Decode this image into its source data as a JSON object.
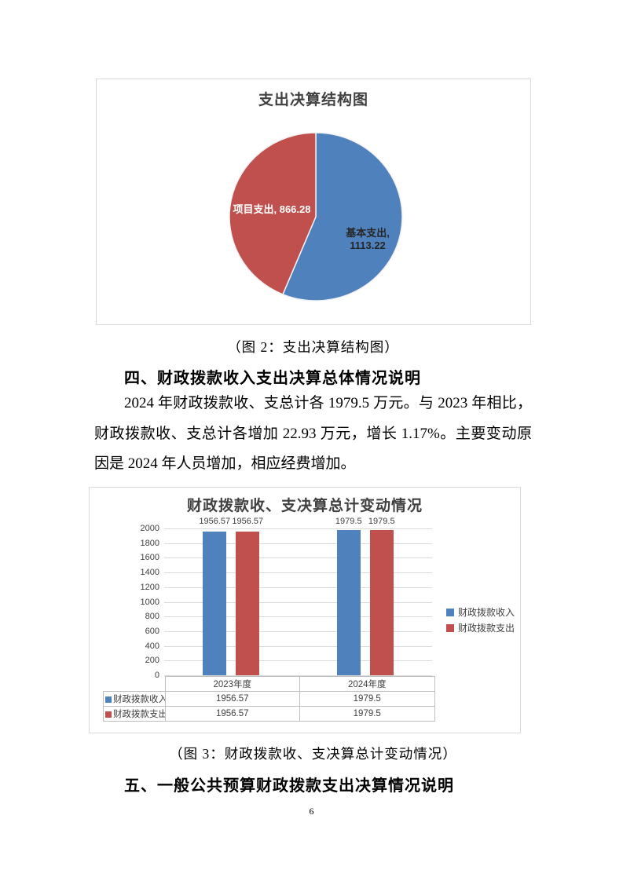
{
  "page": {
    "number": "6"
  },
  "figure2_caption": "（图 2：支出决算结构图）",
  "section4": {
    "heading": "四、财政拨款收入支出决算总体情况说明",
    "paragraph": "2024 年财政拨款收、支总计各 1979.5 万元。与 2023 年相比，财政拨款收、支总计各增加 22.93 万元，增长 1.17%。主要变动原因是 2024 年人员增加，相应经费增加。"
  },
  "figure3_caption": "（图 3：财政拨款收、支决算总计变动情况）",
  "section5": {
    "heading": "五、一般公共预算财政拨款支出决算情况说明"
  },
  "chart_data": [
    {
      "type": "pie",
      "title": "支出决算结构图",
      "total": 1979.5,
      "start_angle_deg": 0,
      "direction": "clockwise",
      "slices": [
        {
          "name": "基本支出",
          "value": 1113.22,
          "color": "#4F81BD",
          "label_lines": [
            "基本支出,",
            "1113.22"
          ],
          "label_color": "#262626"
        },
        {
          "name": "项目支出",
          "value": 866.28,
          "color": "#C0504D",
          "label_lines": [
            "项目支出, 866.28"
          ],
          "label_color": "#FFFFFF"
        }
      ]
    },
    {
      "type": "bar",
      "title": "财政拨款收、支决算总计变动情况",
      "categories": [
        "2023年度",
        "2024年度"
      ],
      "series": [
        {
          "name": "财政拨款收入",
          "color": "#4F81BD",
          "values": [
            1956.57,
            1979.5
          ]
        },
        {
          "name": "财政拨款支出",
          "color": "#C0504D",
          "values": [
            1956.57,
            1979.5
          ]
        }
      ],
      "ylim": [
        0,
        2000
      ],
      "ytick_step": 200,
      "grid": true,
      "legend_position": "right",
      "show_value_labels": true,
      "show_data_table": true
    }
  ]
}
